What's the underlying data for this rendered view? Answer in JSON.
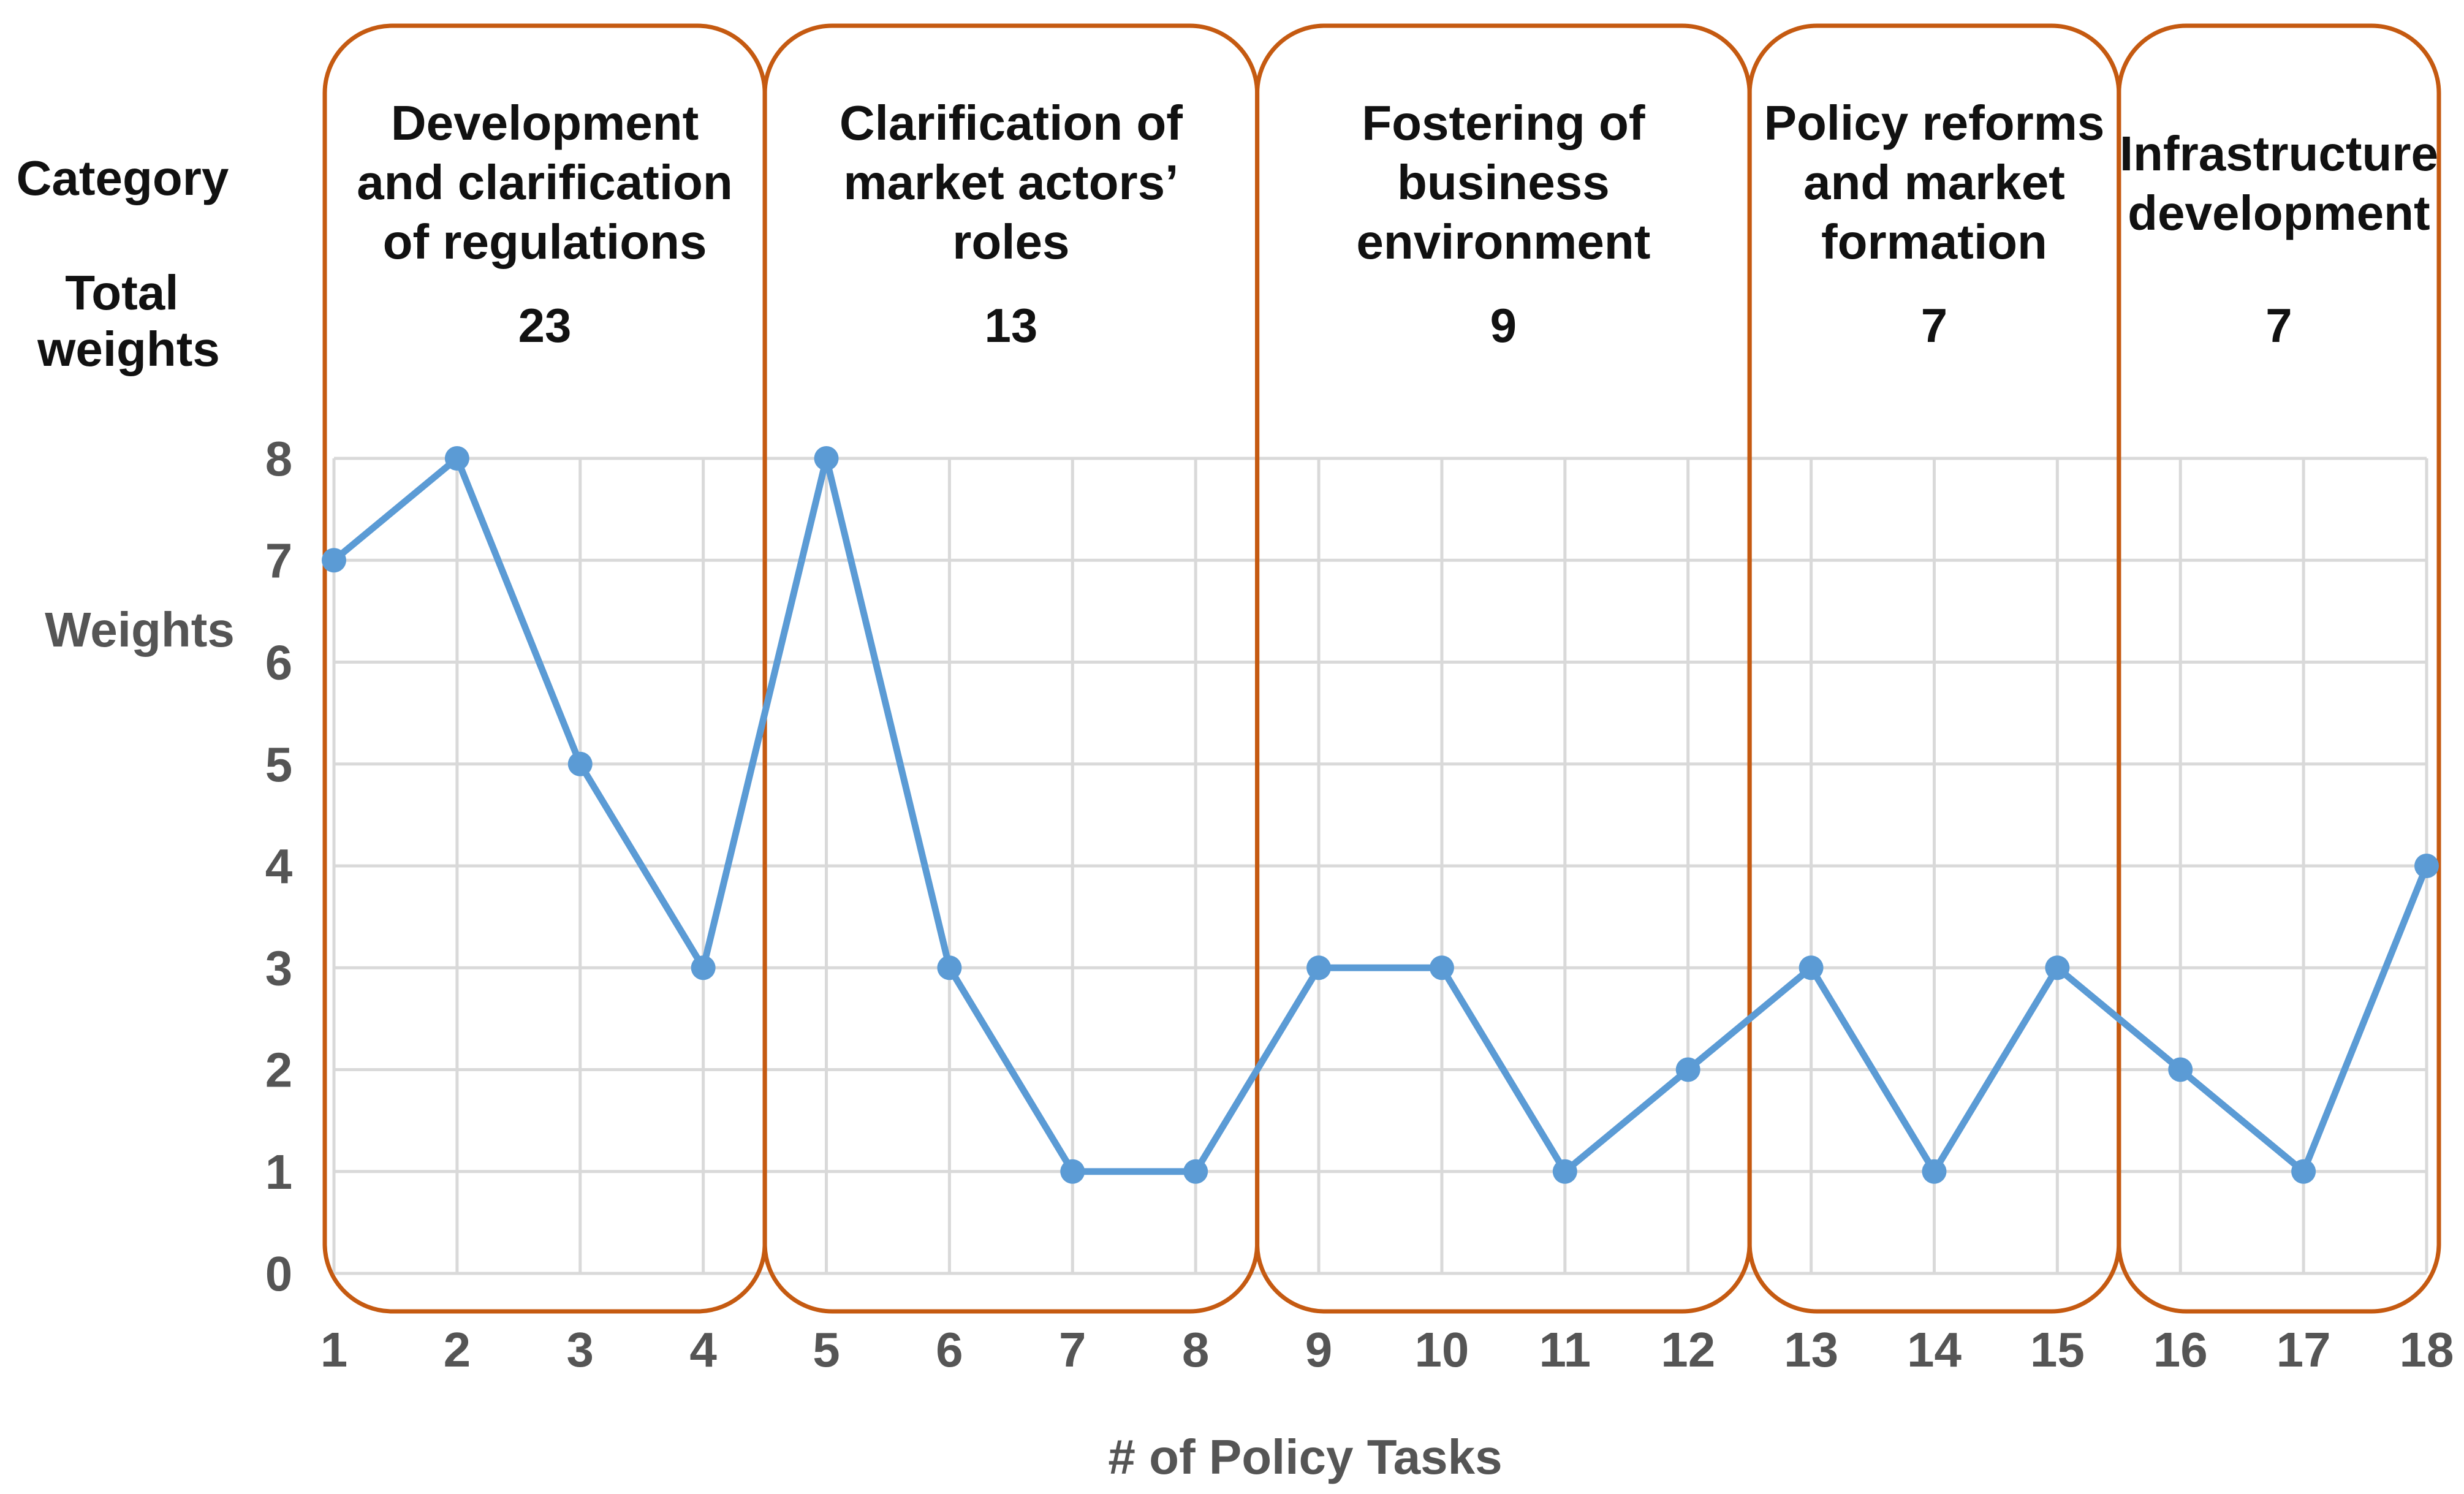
{
  "chart_data": {
    "type": "line",
    "title": "",
    "xlabel": "# of Policy Tasks",
    "ylabel": "Weights",
    "row_labels": {
      "category": "Category",
      "total_weights": [
        "Total",
        "weights"
      ]
    },
    "x": [
      1,
      2,
      3,
      4,
      5,
      6,
      7,
      8,
      9,
      10,
      11,
      12,
      13,
      14,
      15,
      16,
      17,
      18
    ],
    "y_ticks": [
      0,
      1,
      2,
      3,
      4,
      5,
      6,
      7,
      8
    ],
    "xlim": [
      1,
      18
    ],
    "ylim": [
      0,
      8
    ],
    "grid": true,
    "series": [
      {
        "name": "Weights",
        "color": "#5B9BD5",
        "values": [
          7,
          8,
          5,
          3,
          8,
          3,
          1,
          1,
          3,
          3,
          1,
          2,
          3,
          1,
          3,
          2,
          1,
          4
        ]
      }
    ],
    "categories": [
      {
        "label_lines": [
          "Development",
          "and clarification",
          "of regulations"
        ],
        "total_weight": "23",
        "tasks": [
          1,
          4
        ]
      },
      {
        "label_lines": [
          "Clarification of",
          "market actors’",
          "roles"
        ],
        "total_weight": "13",
        "tasks": [
          5,
          8
        ]
      },
      {
        "label_lines": [
          "Fostering of",
          "business",
          "environment"
        ],
        "total_weight": "9",
        "tasks": [
          9,
          12
        ]
      },
      {
        "label_lines": [
          "Policy reforms",
          "and market",
          "formation"
        ],
        "total_weight": "7",
        "tasks": [
          13,
          15
        ]
      },
      {
        "label_lines": [
          "Infrastructure",
          "development"
        ],
        "total_weight": "7",
        "tasks": [
          16,
          18
        ]
      }
    ],
    "box_color": "#C55A11"
  }
}
